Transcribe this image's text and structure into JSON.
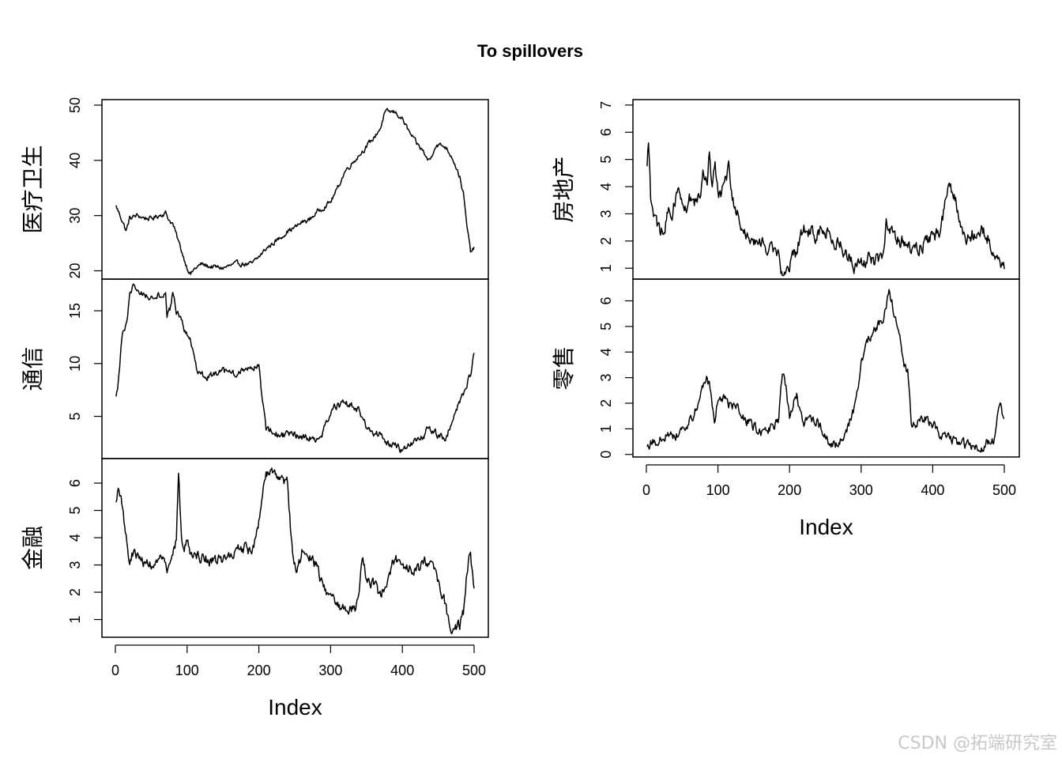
{
  "watermark": "CSDN @拓端研究室",
  "chart_data": {
    "type": "line",
    "title": "To spillovers",
    "xlabel": "Index",
    "xlim": [
      0,
      500
    ],
    "xticks": [
      0,
      100,
      200,
      300,
      400,
      500
    ],
    "series": [
      {
        "name": "医疗卫生",
        "ylim": [
          18.5,
          51
        ],
        "yticks": [
          20,
          30,
          40,
          50
        ],
        "knots": [
          [
            0,
            32
          ],
          [
            5,
            30.5
          ],
          [
            10,
            29
          ],
          [
            15,
            27.2
          ],
          [
            20,
            29.5
          ],
          [
            30,
            30
          ],
          [
            40,
            29.6
          ],
          [
            50,
            29.4
          ],
          [
            60,
            30
          ],
          [
            70,
            30.5
          ],
          [
            75,
            29.2
          ],
          [
            80,
            28.5
          ],
          [
            85,
            26.5
          ],
          [
            90,
            24.5
          ],
          [
            95,
            22.5
          ],
          [
            100,
            20.6
          ],
          [
            105,
            19.4
          ],
          [
            110,
            20.3
          ],
          [
            120,
            21.2
          ],
          [
            130,
            20.8
          ],
          [
            150,
            20.5
          ],
          [
            170,
            21.3
          ],
          [
            190,
            21.2
          ],
          [
            200,
            22.5
          ],
          [
            210,
            24
          ],
          [
            220,
            25
          ],
          [
            230,
            26
          ],
          [
            240,
            27.2
          ],
          [
            250,
            27.8
          ],
          [
            260,
            28.8
          ],
          [
            270,
            29.2
          ],
          [
            280,
            30.5
          ],
          [
            290,
            31.5
          ],
          [
            300,
            32.5
          ],
          [
            310,
            35
          ],
          [
            320,
            38
          ],
          [
            330,
            39.5
          ],
          [
            340,
            41
          ],
          [
            350,
            42.5
          ],
          [
            360,
            44
          ],
          [
            370,
            46
          ],
          [
            375,
            48.5
          ],
          [
            380,
            48.8
          ],
          [
            390,
            48.7
          ],
          [
            400,
            47.5
          ],
          [
            410,
            45
          ],
          [
            420,
            43
          ],
          [
            430,
            41.5
          ],
          [
            435,
            40
          ],
          [
            440,
            40.5
          ],
          [
            445,
            42.5
          ],
          [
            450,
            42.8
          ],
          [
            460,
            42.5
          ],
          [
            470,
            40.5
          ],
          [
            480,
            37
          ],
          [
            485,
            34
          ],
          [
            490,
            28
          ],
          [
            495,
            23.5
          ],
          [
            500,
            24
          ]
        ],
        "amp": 0.45
      },
      {
        "name": "通信",
        "ylim": [
          1,
          18
        ],
        "yticks": [
          5,
          10,
          15
        ],
        "knots": [
          [
            0,
            6.5
          ],
          [
            3,
            7.5
          ],
          [
            6,
            9.8
          ],
          [
            10,
            12.8
          ],
          [
            15,
            13.5
          ],
          [
            20,
            16.5
          ],
          [
            25,
            17.3
          ],
          [
            30,
            17
          ],
          [
            40,
            16.5
          ],
          [
            50,
            16.3
          ],
          [
            60,
            16.6
          ],
          [
            70,
            16.5
          ],
          [
            72,
            14.5
          ],
          [
            78,
            15.5
          ],
          [
            80,
            16.8
          ],
          [
            85,
            15
          ],
          [
            95,
            13.5
          ],
          [
            105,
            12
          ],
          [
            110,
            10.5
          ],
          [
            115,
            8.8
          ],
          [
            130,
            8.8
          ],
          [
            150,
            9.2
          ],
          [
            170,
            8.9
          ],
          [
            180,
            9.5
          ],
          [
            190,
            9.8
          ],
          [
            200,
            9.7
          ],
          [
            205,
            6.5
          ],
          [
            210,
            3.8
          ],
          [
            220,
            3.5
          ],
          [
            230,
            3.2
          ],
          [
            250,
            3.2
          ],
          [
            270,
            3
          ],
          [
            285,
            2.8
          ],
          [
            295,
            4.5
          ],
          [
            305,
            5.8
          ],
          [
            320,
            6.2
          ],
          [
            330,
            6
          ],
          [
            340,
            5.5
          ],
          [
            350,
            4
          ],
          [
            360,
            3.5
          ],
          [
            370,
            3.2
          ],
          [
            380,
            2.5
          ],
          [
            390,
            2.3
          ],
          [
            400,
            1.8
          ],
          [
            410,
            2.2
          ],
          [
            420,
            2.6
          ],
          [
            430,
            3.2
          ],
          [
            435,
            4
          ],
          [
            440,
            3.5
          ],
          [
            450,
            3.3
          ],
          [
            460,
            3
          ],
          [
            470,
            4.5
          ],
          [
            480,
            6.5
          ],
          [
            490,
            8
          ],
          [
            495,
            9
          ],
          [
            500,
            10.9
          ]
        ],
        "amp": 0.35
      },
      {
        "name": "金融",
        "ylim": [
          0.35,
          6.9
        ],
        "yticks": [
          1,
          2,
          3,
          4,
          5,
          6
        ],
        "knots": [
          [
            0,
            5.2
          ],
          [
            5,
            5.8
          ],
          [
            10,
            5.2
          ],
          [
            15,
            4
          ],
          [
            20,
            3
          ],
          [
            25,
            3.5
          ],
          [
            35,
            3.2
          ],
          [
            45,
            3
          ],
          [
            55,
            3.1
          ],
          [
            65,
            3.1
          ],
          [
            75,
            2.8
          ],
          [
            80,
            3.2
          ],
          [
            85,
            4
          ],
          [
            88,
            6.5
          ],
          [
            92,
            4
          ],
          [
            95,
            3.6
          ],
          [
            100,
            3.8
          ],
          [
            105,
            3.5
          ],
          [
            110,
            3.4
          ],
          [
            120,
            3.3
          ],
          [
            130,
            3.2
          ],
          [
            140,
            3.1
          ],
          [
            150,
            3.2
          ],
          [
            160,
            3.4
          ],
          [
            170,
            3.5
          ],
          [
            180,
            3.6
          ],
          [
            190,
            3.5
          ],
          [
            195,
            3.8
          ],
          [
            200,
            4.5
          ],
          [
            205,
            5.5
          ],
          [
            210,
            6.4
          ],
          [
            220,
            6.3
          ],
          [
            230,
            6.1
          ],
          [
            240,
            6
          ],
          [
            245,
            4
          ],
          [
            250,
            3
          ],
          [
            255,
            2.8
          ],
          [
            260,
            3.5
          ],
          [
            270,
            3.3
          ],
          [
            280,
            3
          ],
          [
            290,
            2.2
          ],
          [
            300,
            1.9
          ],
          [
            310,
            1.5
          ],
          [
            320,
            1.4
          ],
          [
            330,
            1.5
          ],
          [
            335,
            1.3
          ],
          [
            340,
            2.2
          ],
          [
            345,
            3.4
          ],
          [
            350,
            2.5
          ],
          [
            360,
            2.3
          ],
          [
            370,
            1.8
          ],
          [
            380,
            2.6
          ],
          [
            390,
            3.3
          ],
          [
            400,
            3
          ],
          [
            410,
            2.9
          ],
          [
            420,
            2.8
          ],
          [
            430,
            3
          ],
          [
            440,
            3.3
          ],
          [
            450,
            2.5
          ],
          [
            460,
            1.5
          ],
          [
            465,
            0.9
          ],
          [
            470,
            0.6
          ],
          [
            480,
            0.8
          ],
          [
            485,
            1.2
          ],
          [
            490,
            2.8
          ],
          [
            495,
            3.5
          ],
          [
            500,
            2
          ]
        ],
        "amp": 0.22
      },
      {
        "name": "房地产",
        "ylim": [
          0.6,
          7.2
        ],
        "yticks": [
          1,
          2,
          3,
          4,
          5,
          6,
          7
        ],
        "knots": [
          [
            0,
            4.5
          ],
          [
            3,
            5.5
          ],
          [
            6,
            3.6
          ],
          [
            10,
            3
          ],
          [
            15,
            2.6
          ],
          [
            20,
            2.2
          ],
          [
            25,
            2.5
          ],
          [
            30,
            3.1
          ],
          [
            35,
            2.9
          ],
          [
            40,
            3.5
          ],
          [
            45,
            4
          ],
          [
            50,
            3.4
          ],
          [
            55,
            3.2
          ],
          [
            60,
            3.6
          ],
          [
            65,
            3.3
          ],
          [
            70,
            3.5
          ],
          [
            75,
            3.8
          ],
          [
            80,
            4.5
          ],
          [
            85,
            4.2
          ],
          [
            88,
            5.5
          ],
          [
            92,
            3.8
          ],
          [
            96,
            5.2
          ],
          [
            100,
            3.6
          ],
          [
            105,
            3.8
          ],
          [
            110,
            4.2
          ],
          [
            115,
            4.6
          ],
          [
            120,
            3.5
          ],
          [
            125,
            3
          ],
          [
            130,
            2.8
          ],
          [
            140,
            2.3
          ],
          [
            150,
            1.9
          ],
          [
            160,
            1.9
          ],
          [
            170,
            1.8
          ],
          [
            180,
            1.8
          ],
          [
            185,
            1.6
          ],
          [
            190,
            0.8
          ],
          [
            195,
            1.1
          ],
          [
            200,
            1.2
          ],
          [
            210,
            1.6
          ],
          [
            215,
            2.2
          ],
          [
            220,
            2.4
          ],
          [
            230,
            2.3
          ],
          [
            240,
            2.2
          ],
          [
            250,
            2.3
          ],
          [
            260,
            2.1
          ],
          [
            270,
            1.9
          ],
          [
            280,
            1.6
          ],
          [
            290,
            1.1
          ],
          [
            300,
            1.2
          ],
          [
            310,
            1.4
          ],
          [
            320,
            1.2
          ],
          [
            330,
            1.6
          ],
          [
            335,
            2.6
          ],
          [
            340,
            2.4
          ],
          [
            350,
            2.2
          ],
          [
            360,
            1.9
          ],
          [
            370,
            1.7
          ],
          [
            380,
            1.8
          ],
          [
            390,
            2
          ],
          [
            400,
            2.1
          ],
          [
            410,
            2.3
          ],
          [
            415,
            3
          ],
          [
            420,
            3.8
          ],
          [
            425,
            4
          ],
          [
            430,
            3.7
          ],
          [
            440,
            2.3
          ],
          [
            450,
            2
          ],
          [
            460,
            2.3
          ],
          [
            470,
            2.4
          ],
          [
            480,
            2
          ],
          [
            490,
            1.3
          ],
          [
            495,
            0.9
          ],
          [
            500,
            0.85
          ]
        ],
        "amp": 0.28
      },
      {
        "name": "零售",
        "ylim": [
          -0.1,
          6.85
        ],
        "yticks": [
          0,
          1,
          2,
          3,
          4,
          5,
          6
        ],
        "knots": [
          [
            0,
            0.4
          ],
          [
            10,
            0.5
          ],
          [
            20,
            0.6
          ],
          [
            30,
            0.8
          ],
          [
            40,
            0.7
          ],
          [
            50,
            1
          ],
          [
            60,
            1.3
          ],
          [
            70,
            1.8
          ],
          [
            75,
            2.3
          ],
          [
            80,
            2.8
          ],
          [
            85,
            3
          ],
          [
            90,
            2.5
          ],
          [
            95,
            1.2
          ],
          [
            100,
            2.3
          ],
          [
            110,
            2.1
          ],
          [
            120,
            1.9
          ],
          [
            130,
            1.7
          ],
          [
            140,
            1.3
          ],
          [
            150,
            1.1
          ],
          [
            160,
            0.8
          ],
          [
            170,
            0.9
          ],
          [
            180,
            1.2
          ],
          [
            185,
            1.4
          ],
          [
            190,
            3.3
          ],
          [
            195,
            2.6
          ],
          [
            200,
            1.4
          ],
          [
            205,
            2
          ],
          [
            210,
            2.3
          ],
          [
            215,
            1.6
          ],
          [
            220,
            1.2
          ],
          [
            230,
            1.5
          ],
          [
            240,
            1.2
          ],
          [
            250,
            0.7
          ],
          [
            260,
            0.3
          ],
          [
            270,
            0.5
          ],
          [
            280,
            0.9
          ],
          [
            290,
            1.8
          ],
          [
            300,
            3.5
          ],
          [
            310,
            4.5
          ],
          [
            320,
            4.9
          ],
          [
            330,
            5.3
          ],
          [
            340,
            6.3
          ],
          [
            350,
            5.1
          ],
          [
            355,
            4.5
          ],
          [
            360,
            3.5
          ],
          [
            365,
            3.2
          ],
          [
            370,
            1.2
          ],
          [
            380,
            1.3
          ],
          [
            390,
            1.4
          ],
          [
            400,
            1.2
          ],
          [
            410,
            0.8
          ],
          [
            420,
            0.7
          ],
          [
            430,
            0.5
          ],
          [
            440,
            0.4
          ],
          [
            450,
            0.3
          ],
          [
            460,
            0.3
          ],
          [
            470,
            0.3
          ],
          [
            480,
            0.6
          ],
          [
            485,
            0.5
          ],
          [
            490,
            1.5
          ],
          [
            495,
            1.8
          ],
          [
            500,
            1.3
          ]
        ],
        "amp": 0.2
      }
    ]
  }
}
